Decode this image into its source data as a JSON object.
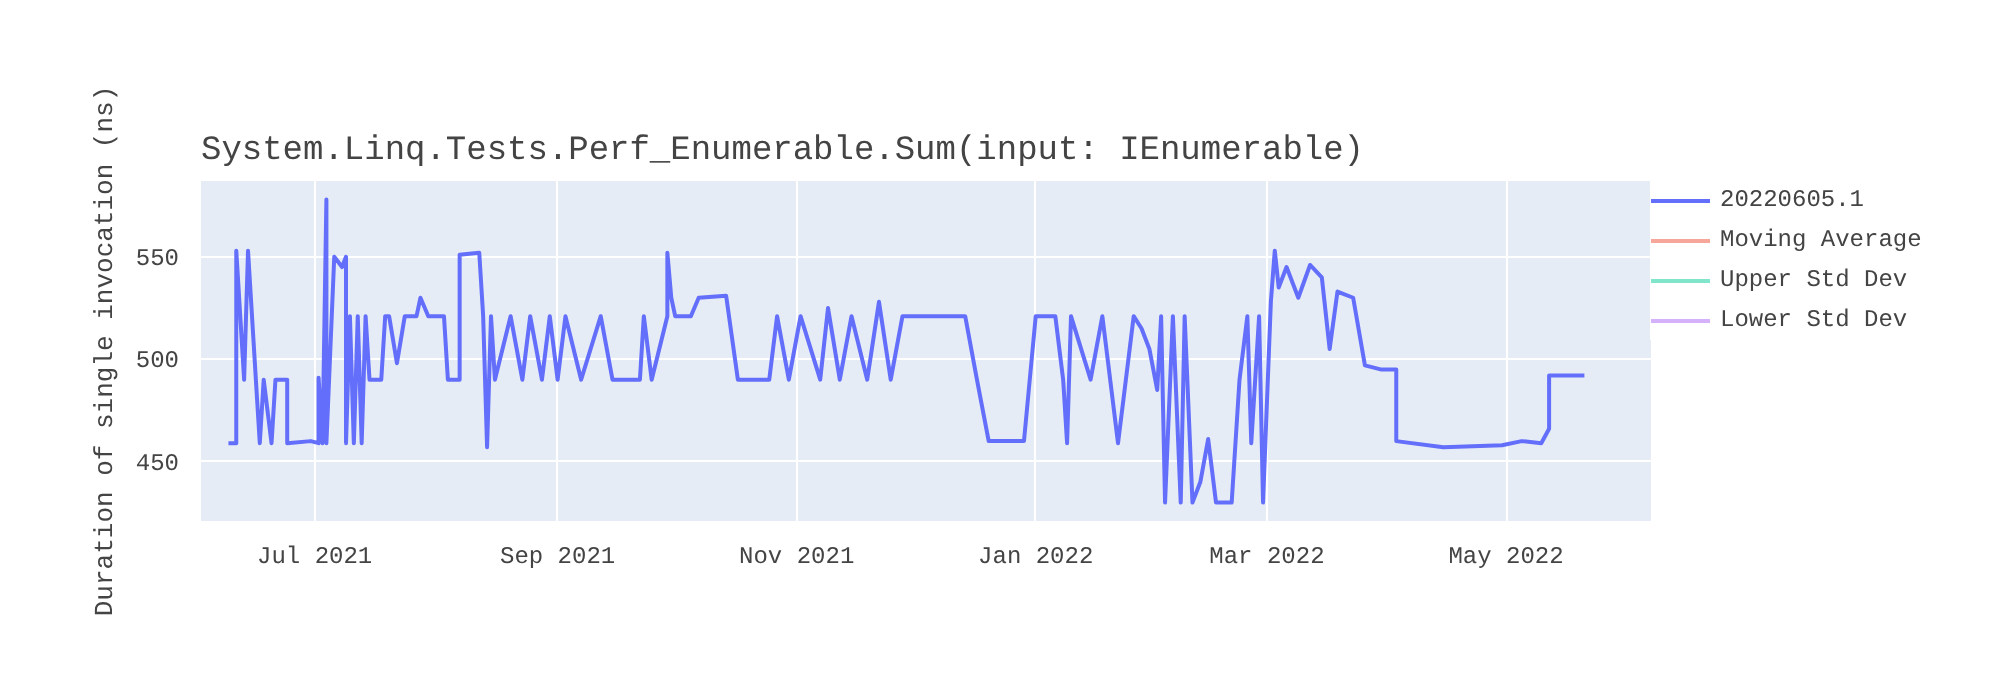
{
  "chart_data": {
    "type": "line",
    "title": "System.Linq.Tests.Perf_Enumerable.Sum(input: IEnumerable)",
    "ylabel": "Duration of single invocation (ns)",
    "xlim": [
      "2021-06-02",
      "2022-06-07"
    ],
    "ylim": [
      421,
      587
    ],
    "xticks": [
      {
        "value": "2021-07-01",
        "label": "Jul 2021"
      },
      {
        "value": "2021-09-01",
        "label": "Sep 2021"
      },
      {
        "value": "2021-11-01",
        "label": "Nov 2021"
      },
      {
        "value": "2022-01-01",
        "label": "Jan 2022"
      },
      {
        "value": "2022-03-01",
        "label": "Mar 2022"
      },
      {
        "value": "2022-05-01",
        "label": "May 2022"
      }
    ],
    "yticks": [
      450,
      500,
      550
    ],
    "grid": true,
    "legend": "top right",
    "marker": "none",
    "line_style": "solid",
    "series": [
      {
        "name": "20220605.1",
        "color": "#636efa",
        "x": [
          "2021-06-09",
          "2021-06-11",
          "2021-06-11",
          "2021-06-13",
          "2021-06-14",
          "2021-06-16",
          "2021-06-17",
          "2021-06-18",
          "2021-06-20",
          "2021-06-21",
          "2021-06-24",
          "2021-06-24",
          "2021-06-30",
          "2021-07-02",
          "2021-07-02",
          "2021-07-03",
          "2021-07-04",
          "2021-07-04",
          "2021-07-06",
          "2021-07-08",
          "2021-07-09",
          "2021-07-09",
          "2021-07-10",
          "2021-07-11",
          "2021-07-12",
          "2021-07-13",
          "2021-07-14",
          "2021-07-15",
          "2021-07-18",
          "2021-07-19",
          "2021-07-20",
          "2021-07-22",
          "2021-07-24",
          "2021-07-27",
          "2021-07-28",
          "2021-07-30",
          "2021-08-03",
          "2021-08-04",
          "2021-08-07",
          "2021-08-07",
          "2021-08-12",
          "2021-08-13",
          "2021-08-14",
          "2021-08-15",
          "2021-08-16",
          "2021-08-20",
          "2021-08-23",
          "2021-08-25",
          "2021-08-28",
          "2021-08-30",
          "2021-09-01",
          "2021-09-03",
          "2021-09-07",
          "2021-09-12",
          "2021-09-15",
          "2021-09-22",
          "2021-09-23",
          "2021-09-25",
          "2021-09-29",
          "2021-09-29",
          "2021-09-30",
          "2021-10-01",
          "2021-10-05",
          "2021-10-07",
          "2021-10-14",
          "2021-10-17",
          "2021-10-25",
          "2021-10-27",
          "2021-10-30",
          "2021-11-02",
          "2021-11-07",
          "2021-11-09",
          "2021-11-12",
          "2021-11-15",
          "2021-11-19",
          "2021-11-22",
          "2021-11-25",
          "2021-11-28",
          "2021-12-03",
          "2021-12-10",
          "2021-12-14",
          "2021-12-17",
          "2021-12-20",
          "2021-12-29",
          "2022-01-01",
          "2022-01-06",
          "2022-01-08",
          "2022-01-09",
          "2022-01-10",
          "2022-01-15",
          "2022-01-18",
          "2022-01-22",
          "2022-01-24",
          "2022-01-26",
          "2022-01-28",
          "2022-01-30",
          "2022-01-31",
          "2022-02-01",
          "2022-02-02",
          "2022-02-03",
          "2022-02-05",
          "2022-02-07",
          "2022-02-08",
          "2022-02-10",
          "2022-02-12",
          "2022-02-14",
          "2022-02-16",
          "2022-02-20",
          "2022-02-22",
          "2022-02-24",
          "2022-02-25",
          "2022-02-27",
          "2022-02-28",
          "2022-03-02",
          "2022-03-03",
          "2022-03-04",
          "2022-03-06",
          "2022-03-09",
          "2022-03-12",
          "2022-03-15",
          "2022-03-17",
          "2022-03-19",
          "2022-03-23",
          "2022-03-26",
          "2022-03-30",
          "2022-04-03",
          "2022-04-03",
          "2022-04-15",
          "2022-04-30",
          "2022-05-05",
          "2022-05-10",
          "2022-05-12",
          "2022-05-12",
          "2022-05-21"
        ],
        "values": [
          459,
          459,
          553,
          490,
          553,
          490,
          459,
          490,
          459,
          490,
          490,
          459,
          460,
          459,
          491,
          459,
          578,
          459,
          550,
          545,
          550,
          459,
          521,
          459,
          521,
          459,
          521,
          490,
          490,
          521,
          521,
          498,
          521,
          521,
          530,
          521,
          521,
          490,
          490,
          551,
          552,
          521,
          457,
          521,
          490,
          521,
          490,
          521,
          490,
          521,
          490,
          521,
          490,
          521,
          490,
          490,
          521,
          490,
          521,
          552,
          530,
          521,
          521,
          530,
          531,
          490,
          490,
          521,
          490,
          521,
          490,
          525,
          490,
          521,
          490,
          528,
          490,
          521,
          521,
          521,
          521,
          490,
          460,
          460,
          521,
          521,
          490,
          459,
          521,
          490,
          521,
          459,
          490,
          521,
          515,
          505,
          495,
          485,
          521,
          430,
          521,
          430,
          521,
          430,
          440,
          461,
          430,
          430,
          490,
          521,
          459,
          521,
          430,
          528,
          553,
          535,
          545,
          530,
          546,
          540,
          505,
          533,
          530,
          497,
          495,
          495,
          460,
          457,
          458,
          460,
          459,
          466,
          492,
          492
        ]
      },
      {
        "name": "Moving Average",
        "color": "#f7a799"
      },
      {
        "name": "Upper Std Dev",
        "color": "#80e5ca"
      },
      {
        "name": "Lower Std Dev",
        "color": "#d5b1fc"
      }
    ]
  }
}
